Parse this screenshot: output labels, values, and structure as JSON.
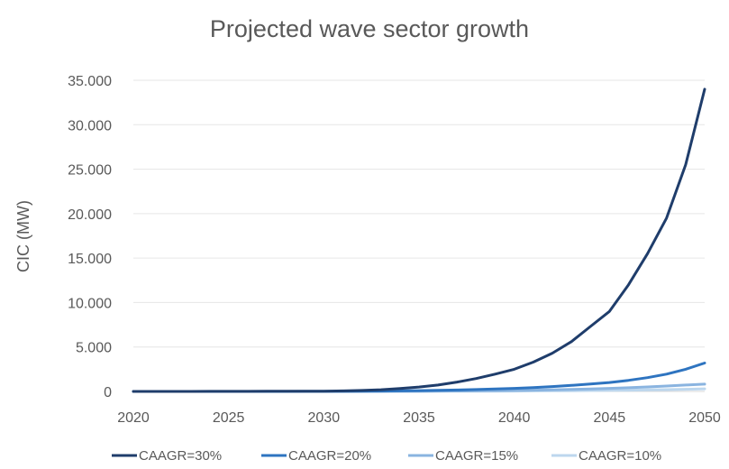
{
  "chart_data": {
    "type": "line",
    "title": "Projected wave sector growth",
    "ylabel": "CIC (MW)",
    "xlabel": "",
    "xlim": [
      2020,
      2050
    ],
    "ylim": [
      0,
      35000
    ],
    "x_ticks": [
      2020,
      2025,
      2030,
      2035,
      2040,
      2045,
      2050
    ],
    "x_tick_labels": [
      "2020",
      "2025",
      "2030",
      "2035",
      "2040",
      "2045",
      "2050"
    ],
    "y_ticks": [
      0,
      5000,
      10000,
      15000,
      20000,
      25000,
      30000,
      35000
    ],
    "y_tick_labels": [
      "0",
      "5.000",
      "10.000",
      "15.000",
      "20.000",
      "25.000",
      "30.000",
      "35.000"
    ],
    "grid": true,
    "legend_position": "bottom",
    "x": [
      2020,
      2021,
      2022,
      2023,
      2024,
      2025,
      2026,
      2027,
      2028,
      2029,
      2030,
      2031,
      2032,
      2033,
      2034,
      2035,
      2036,
      2037,
      2038,
      2039,
      2040,
      2041,
      2042,
      2043,
      2044,
      2045,
      2046,
      2047,
      2048,
      2049,
      2050
    ],
    "series": [
      {
        "name": "CAAGR=30%",
        "color": "#1f3d6b",
        "values": [
          2,
          3,
          4,
          5,
          7,
          9,
          12,
          16,
          21,
          27,
          35,
          60,
          110,
          190,
          320,
          500,
          720,
          1050,
          1450,
          1950,
          2500,
          3300,
          4300,
          5600,
          7300,
          9000,
          12000,
          15500,
          19500,
          25500,
          34000
        ]
      },
      {
        "name": "CAAGR=20%",
        "color": "#2e74c0",
        "values": [
          1,
          1,
          1,
          2,
          2,
          3,
          3,
          4,
          5,
          6,
          8,
          14,
          22,
          40,
          60,
          90,
          120,
          160,
          210,
          270,
          350,
          440,
          550,
          680,
          840,
          1000,
          1250,
          1550,
          1950,
          2500,
          3200
        ]
      },
      {
        "name": "CAAGR=15%",
        "color": "#8ab4e0",
        "values": [
          1,
          1,
          1,
          1,
          1,
          2,
          2,
          2,
          3,
          3,
          4,
          6,
          10,
          15,
          22,
          30,
          40,
          52,
          66,
          85,
          110,
          140,
          175,
          220,
          275,
          340,
          420,
          510,
          610,
          720,
          820
        ]
      },
      {
        "name": "CAAGR=10%",
        "color": "#bdd7ee",
        "values": [
          1,
          1,
          1,
          1,
          1,
          1,
          1,
          1,
          2,
          2,
          2,
          3,
          5,
          7,
          10,
          14,
          18,
          23,
          29,
          36,
          45,
          56,
          68,
          82,
          98,
          118,
          142,
          170,
          200,
          240,
          290
        ]
      }
    ]
  }
}
